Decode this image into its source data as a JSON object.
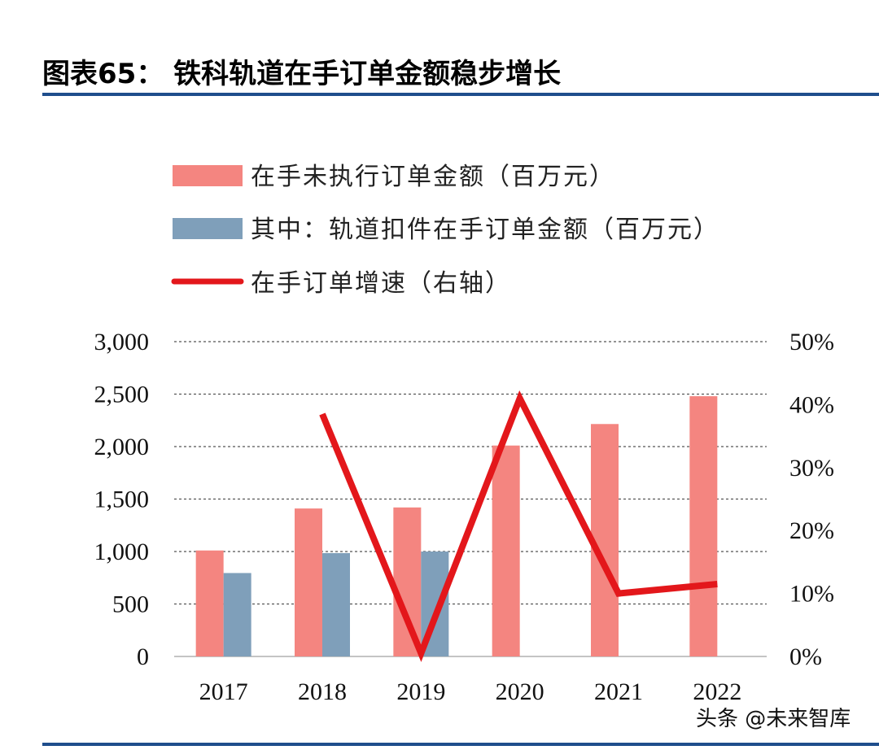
{
  "header": {
    "title": "图表65：  铁科轨道在手订单金额稳步增长"
  },
  "watermark": {
    "text": "头条 @未来智库"
  },
  "colors": {
    "bar_total": "#f48580",
    "bar_fasteners": "#7f9fba",
    "line_growth": "#e3171b",
    "rule": "#1f4e8c",
    "grid": "#555555"
  },
  "chart_data": {
    "type": "bar",
    "categories": [
      "2017",
      "2018",
      "2019",
      "2020",
      "2021",
      "2022"
    ],
    "series": [
      {
        "name": "在手未执行订单金额（百万元）",
        "type": "bar",
        "axis": "left",
        "values": [
          1010,
          1410,
          1420,
          2010,
          2215,
          2480
        ]
      },
      {
        "name": "其中：轨道扣件在手订单金额（百万元）",
        "type": "bar",
        "axis": "left",
        "values": [
          795,
          985,
          1000,
          null,
          null,
          null
        ]
      },
      {
        "name": "在手订单增速（右轴）",
        "type": "line",
        "axis": "right",
        "values": [
          null,
          0.385,
          0.005,
          0.41,
          0.1,
          0.115
        ]
      }
    ],
    "left_axis": {
      "min": 0,
      "max": 3000,
      "ticks": [
        0,
        500,
        1000,
        1500,
        2000,
        2500,
        3000
      ],
      "tick_labels": [
        "0",
        "500",
        "1,000",
        "1,500",
        "2,000",
        "2,500",
        "3,000"
      ]
    },
    "right_axis": {
      "min": 0,
      "max": 0.5,
      "ticks": [
        0,
        0.1,
        0.2,
        0.3,
        0.4,
        0.5
      ],
      "tick_labels": [
        "0%",
        "10%",
        "20%",
        "30%",
        "40%",
        "50%"
      ]
    },
    "grid": true,
    "legend_position": "top-left"
  }
}
